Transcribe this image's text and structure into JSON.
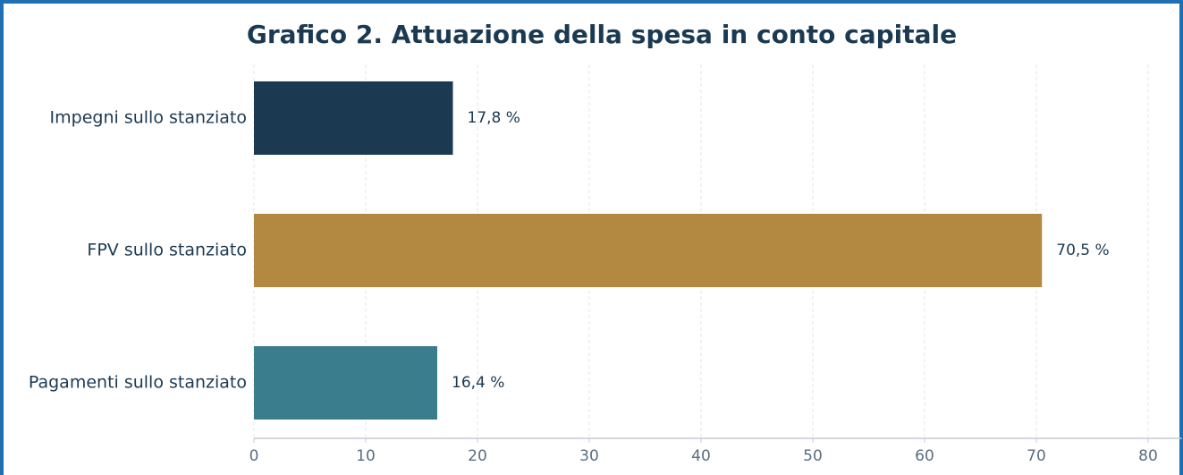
{
  "chart_data": {
    "type": "barh",
    "title": "Grafico 2. Attuazione della spesa in conto capitale",
    "categories": [
      "Impegni sullo stanziato",
      "FPV sullo stanziato",
      "Pagamenti sullo stanziato"
    ],
    "values": [
      17.8,
      70.5,
      16.4
    ],
    "value_labels": [
      "17,8 %",
      "70,5 %",
      "16,4 %"
    ],
    "colors": [
      "#1b3a52",
      "#b38840",
      "#3a7d8c"
    ],
    "xlim": [
      0,
      83
    ],
    "xticks": [
      0,
      10,
      20,
      30,
      40,
      50,
      60,
      70,
      80
    ],
    "grid": true
  }
}
